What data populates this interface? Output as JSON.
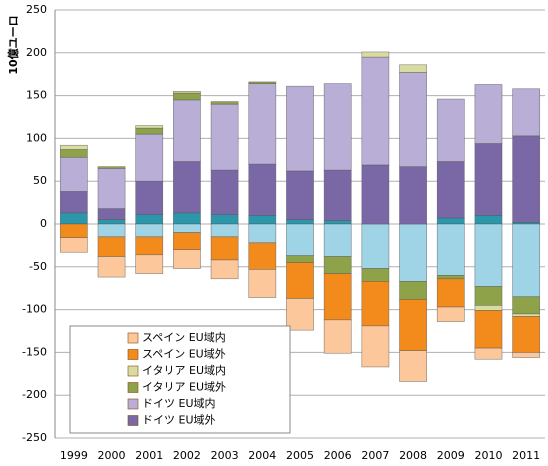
{
  "chart_data": {
    "type": "bar",
    "stacked": true,
    "y_label": "10億ユーロ",
    "categories": [
      "1999",
      "2000",
      "2001",
      "2002",
      "2003",
      "2004",
      "2005",
      "2006",
      "2007",
      "2008",
      "2009",
      "2010",
      "2011"
    ],
    "series": [
      {
        "color": "#2b97ab",
        "values": [
          13,
          5,
          11,
          13,
          11,
          10,
          5,
          4,
          0,
          0,
          7,
          10,
          2
        ]
      },
      {
        "color": "#9ed4e5",
        "values": [
          0,
          -15,
          -15,
          -10,
          -15,
          -22,
          -37,
          -38,
          -52,
          -67,
          -60,
          -73,
          -85
        ]
      },
      {
        "name": "ドイツ EU域外",
        "color": "#7a68a6",
        "values": [
          25,
          13,
          39,
          60,
          52,
          60,
          57,
          59,
          69,
          67,
          66,
          84,
          101
        ]
      },
      {
        "name": "ドイツ EU域内",
        "color": "#b9aed6",
        "values": [
          40,
          47,
          55,
          72,
          77,
          94,
          99,
          101,
          126,
          110,
          73,
          69,
          55
        ]
      },
      {
        "name": "イタリア EU域外",
        "color": "#8ea24a",
        "values": [
          9,
          2,
          7,
          8,
          3,
          2,
          -8,
          -20,
          -15,
          -21,
          -4,
          -22,
          -20
        ]
      },
      {
        "name": "イタリア EU域内",
        "color": "#d8dca0",
        "values": [
          5,
          0,
          3,
          2,
          0,
          0,
          0,
          0,
          6,
          9,
          0,
          -6,
          -3
        ]
      },
      {
        "name": "スペイン EU域外",
        "color": "#f28a1c",
        "values": [
          -16,
          -23,
          -21,
          -20,
          -27,
          -31,
          -42,
          -54,
          -52,
          -60,
          -33,
          -44,
          -42
        ]
      },
      {
        "name": "スペイン EU域内",
        "color": "#fcc89b",
        "values": [
          -17,
          -24,
          -22,
          -22,
          -22,
          -33,
          -37,
          -39,
          -48,
          -36,
          -17,
          -13,
          -6
        ]
      }
    ],
    "ylim": [
      -250,
      250
    ],
    "yticks": [
      -250,
      -200,
      -150,
      -100,
      -50,
      0,
      50,
      100,
      150,
      200,
      250
    ],
    "grid": true
  }
}
